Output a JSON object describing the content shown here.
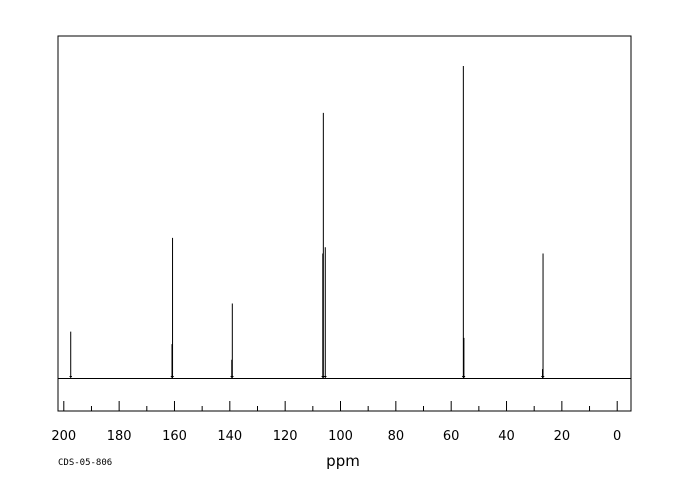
{
  "footer": {
    "code": "CDS-05-806"
  },
  "chart_data": {
    "type": "line",
    "subtype": "nmr-stick-spectrum",
    "title": "",
    "xlabel": "ppm",
    "ylabel": "",
    "xlim": [
      200,
      0
    ],
    "x_reversed": true,
    "ylim": [
      0,
      1.0
    ],
    "x_ticks": [
      200,
      180,
      160,
      140,
      120,
      100,
      80,
      60,
      40,
      20,
      0
    ],
    "x_tick_labels": [
      "200",
      "180",
      "160",
      "140",
      "120",
      "100",
      "80",
      "60",
      "40",
      "20",
      "0"
    ],
    "x_minor_step": 10,
    "grid": false,
    "legend": "none",
    "line_color": "#000000",
    "peaks": [
      {
        "ppm": 197.5,
        "intensity": 0.15
      },
      {
        "ppm": 160.7,
        "intensity": 0.45
      },
      {
        "ppm": 160.9,
        "intensity": 0.11
      },
      {
        "ppm": 139.1,
        "intensity": 0.24
      },
      {
        "ppm": 139.3,
        "intensity": 0.06
      },
      {
        "ppm": 106.2,
        "intensity": 0.85
      },
      {
        "ppm": 106.4,
        "intensity": 0.4
      },
      {
        "ppm": 105.5,
        "intensity": 0.42
      },
      {
        "ppm": 55.6,
        "intensity": 1.0
      },
      {
        "ppm": 55.4,
        "intensity": 0.13
      },
      {
        "ppm": 26.8,
        "intensity": 0.4
      },
      {
        "ppm": 27.0,
        "intensity": 0.03
      }
    ]
  }
}
